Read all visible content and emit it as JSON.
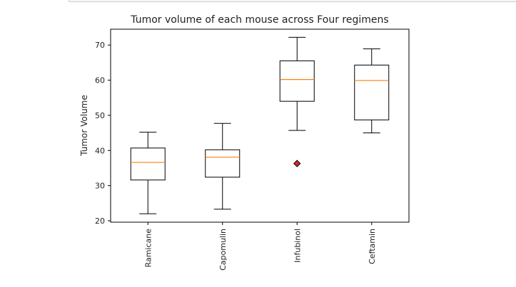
{
  "chart_data": {
    "type": "box",
    "title": "Tumor volume of each mouse across Four regimens",
    "xlabel": "",
    "ylabel": "Tumor Volume",
    "ylim": [
      19.6,
      74.5
    ],
    "yticks": [
      20,
      30,
      40,
      50,
      60,
      70
    ],
    "grid": false,
    "categories": [
      "Ramicane",
      "Capomulin",
      "Infubinol",
      "Ceftamin"
    ],
    "boxes": [
      {
        "label": "Ramicane",
        "whisker_low": 22.0,
        "q1": 31.6,
        "median": 36.6,
        "q3": 40.7,
        "whisker_high": 45.2,
        "outliers": []
      },
      {
        "label": "Capomulin",
        "whisker_low": 23.3,
        "q1": 32.4,
        "median": 38.1,
        "q3": 40.2,
        "whisker_high": 47.7,
        "outliers": []
      },
      {
        "label": "Infubinol",
        "whisker_low": 45.7,
        "q1": 54.0,
        "median": 60.2,
        "q3": 65.5,
        "whisker_high": 72.2,
        "outliers": [
          36.3
        ]
      },
      {
        "label": "Ceftamin",
        "whisker_low": 45.0,
        "q1": 48.7,
        "median": 59.9,
        "q3": 64.3,
        "whisker_high": 68.9,
        "outliers": []
      }
    ],
    "colors": {
      "median": "#ff7f0e",
      "outlier_fill": "#d62728",
      "box": "#000000"
    }
  }
}
